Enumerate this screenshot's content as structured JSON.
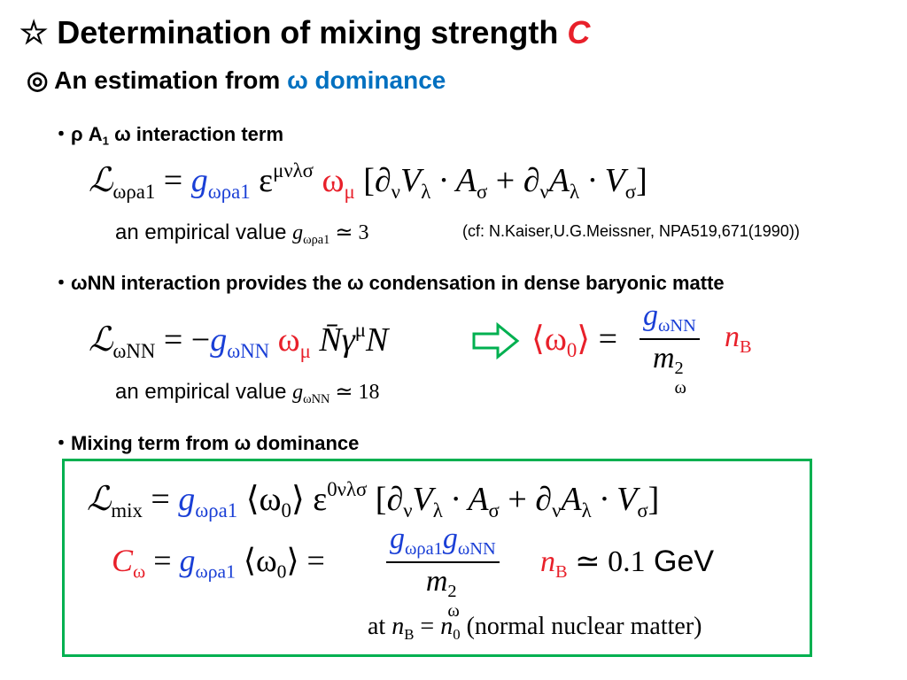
{
  "title": [
    {
      "text": "☆ Determination of mixing strength "
    },
    {
      "text": "C",
      "color": "#e8202a",
      "italic": true
    }
  ],
  "subtitle": [
    {
      "text": "◎ An estimation from "
    },
    {
      "text": "ω dominance",
      "color": "#0070c0"
    }
  ],
  "bullet_1": [
    {
      "text": "・ρ A"
    },
    {
      "text": "1",
      "script": "sub"
    },
    {
      "text": " ω interaction term"
    }
  ],
  "eq_1": [
    {
      "text": "ℒ",
      "italic": true
    },
    {
      "text": "ωρa",
      "script": "sub"
    },
    {
      "text": "1",
      "script": "sub"
    },
    {
      "text": " = "
    },
    {
      "text": "g",
      "color": "#1a3fd6",
      "italic": true
    },
    {
      "text": "ωρa1",
      "color": "#1a3fd6",
      "script": "sub"
    },
    {
      "text": " ε"
    },
    {
      "text": "μνλσ",
      "script": "sup"
    },
    {
      "text": " ω",
      "color": "#e8202a"
    },
    {
      "text": "μ",
      "color": "#e8202a",
      "script": "sub"
    },
    {
      "text": " [∂"
    },
    {
      "text": "ν",
      "script": "sub"
    },
    {
      "text": "V",
      "italic": true
    },
    {
      "text": "λ",
      "script": "sub"
    },
    {
      "text": " · A",
      "italic": true
    },
    {
      "text": "σ",
      "script": "sub"
    },
    {
      "text": " + ∂"
    },
    {
      "text": "ν",
      "script": "sub"
    },
    {
      "text": "A",
      "italic": true
    },
    {
      "text": "λ",
      "script": "sub"
    },
    {
      "text": " · V",
      "italic": true
    },
    {
      "text": "σ",
      "script": "sub"
    },
    {
      "text": "]"
    }
  ],
  "empirical_1": [
    {
      "text": "an empirical value ",
      "sans": true
    },
    {
      "text": "g",
      "italic": true
    },
    {
      "text": "ωρa1",
      "script": "sub"
    },
    {
      "text": " ≃ 3"
    }
  ],
  "reference": [
    {
      "text": "(cf: N.Kaiser,U.G.Meissner, NPA519,671(1990))"
    }
  ],
  "bullet_2": [
    {
      "text": "・ωNN interaction provides the ω condensation in dense baryonic matte"
    }
  ],
  "eq_2": [
    {
      "text": "ℒ",
      "italic": true
    },
    {
      "text": "ωNN",
      "script": "sub"
    },
    {
      "text": " = −"
    },
    {
      "text": "g",
      "color": "#1a3fd6",
      "italic": true
    },
    {
      "text": "ωNN",
      "color": "#1a3fd6",
      "script": "sub"
    },
    {
      "text": " ω",
      "color": "#e8202a"
    },
    {
      "text": "μ",
      "color": "#e8202a",
      "script": "sub"
    },
    {
      "text": " N̄γ",
      "italic": true
    },
    {
      "text": "μ",
      "script": "sup"
    },
    {
      "text": "N",
      "italic": true
    }
  ],
  "eq_2_rhs": {
    "left": [
      {
        "text": "⟨ω",
        "color": "#e8202a"
      },
      {
        "text": "0",
        "color": "#e8202a",
        "script": "sub"
      },
      {
        "text": "⟩",
        "color": "#e8202a"
      },
      {
        "text": " = "
      }
    ],
    "numerator": [
      {
        "text": "g",
        "color": "#1a3fd6",
        "italic": true
      },
      {
        "text": "ωNN",
        "color": "#1a3fd6",
        "script": "sub"
      }
    ],
    "denominator": [
      {
        "text": "m",
        "italic": true
      },
      {
        "text": "2",
        "script": "sup"
      },
      {
        "text": "ω",
        "script": "sub"
      }
    ],
    "right": [
      {
        "text": "n",
        "color": "#e8202a",
        "italic": true
      },
      {
        "text": "B",
        "color": "#e8202a",
        "script": "sub"
      }
    ]
  },
  "empirical_2": [
    {
      "text": "an empirical value ",
      "sans": true
    },
    {
      "text": "g",
      "italic": true
    },
    {
      "text": "ωNN",
      "script": "sub"
    },
    {
      "text": " ≃ 18"
    }
  ],
  "bullet_3": [
    {
      "text": "・Mixing term from ω dominance"
    }
  ],
  "eq_3": [
    {
      "text": "ℒ",
      "italic": true
    },
    {
      "text": "mix",
      "script": "sub"
    },
    {
      "text": " = "
    },
    {
      "text": "g",
      "color": "#1a3fd6",
      "italic": true
    },
    {
      "text": "ωρa1",
      "color": "#1a3fd6",
      "script": "sub"
    },
    {
      "text": " ⟨ω"
    },
    {
      "text": "0",
      "script": "sub"
    },
    {
      "text": "⟩ ε"
    },
    {
      "text": "0νλσ",
      "script": "sup"
    },
    {
      "text": " [∂"
    },
    {
      "text": "ν",
      "script": "sub"
    },
    {
      "text": "V",
      "italic": true
    },
    {
      "text": "λ",
      "script": "sub"
    },
    {
      "text": " · A",
      "italic": true
    },
    {
      "text": "σ",
      "script": "sub"
    },
    {
      "text": " + ∂"
    },
    {
      "text": "ν",
      "script": "sub"
    },
    {
      "text": "A",
      "italic": true
    },
    {
      "text": "λ",
      "script": "sub"
    },
    {
      "text": " · V",
      "italic": true
    },
    {
      "text": "σ",
      "script": "sub"
    },
    {
      "text": "]"
    }
  ],
  "eq_4": {
    "left": [
      {
        "text": "C",
        "color": "#e8202a",
        "italic": true
      },
      {
        "text": "ω",
        "color": "#e8202a",
        "script": "sub"
      },
      {
        "text": " = "
      },
      {
        "text": "g",
        "color": "#1a3fd6",
        "italic": true
      },
      {
        "text": "ωρa1",
        "color": "#1a3fd6",
        "script": "sub"
      },
      {
        "text": " ⟨ω"
      },
      {
        "text": "0",
        "script": "sub"
      },
      {
        "text": "⟩ = "
      }
    ],
    "numerator": [
      {
        "text": "g",
        "color": "#1a3fd6",
        "italic": true
      },
      {
        "text": "ωρa1",
        "color": "#1a3fd6",
        "script": "sub"
      },
      {
        "text": "g",
        "color": "#1a3fd6",
        "italic": true
      },
      {
        "text": "ωNN",
        "color": "#1a3fd6",
        "script": "sub"
      }
    ],
    "denominator": [
      {
        "text": "m",
        "italic": true
      },
      {
        "text": "2",
        "script": "sup"
      },
      {
        "text": "ω",
        "script": "sub"
      }
    ],
    "right": [
      {
        "text": "n",
        "color": "#e8202a",
        "italic": true
      },
      {
        "text": "B",
        "color": "#e8202a",
        "script": "sub"
      },
      {
        "text": " ≃ 0.1"
      },
      {
        "text": " GeV",
        "sans": true
      }
    ]
  },
  "condition": [
    {
      "text": "at "
    },
    {
      "text": "n",
      "italic": true
    },
    {
      "text": "B",
      "script": "sub"
    },
    {
      "text": " = "
    },
    {
      "text": "n",
      "italic": true
    },
    {
      "text": "0",
      "script": "sub"
    },
    {
      "text": " (normal nuclear matter)"
    }
  ]
}
